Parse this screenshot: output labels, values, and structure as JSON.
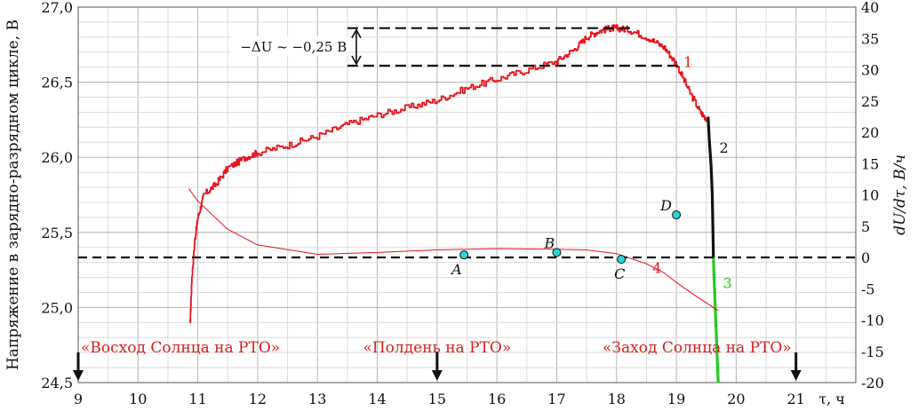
{
  "chart_data": {
    "type": "line",
    "ylabel": "Напряжение в зарядно-разрядном цикле, В",
    "y2label": "dU/dτ, В/ч",
    "xlabel": "τ, ч",
    "xlim": [
      9,
      22
    ],
    "ylim": [
      24.5,
      27.0
    ],
    "y2lim": [
      -20,
      40
    ],
    "x_ticks": [
      "9",
      "10",
      "11",
      "12",
      "13",
      "14",
      "15",
      "16",
      "17",
      "18",
      "19",
      "20",
      "21"
    ],
    "y_ticks": [
      "24,5",
      "25,0",
      "25,5",
      "26,0",
      "26,5",
      "27,0"
    ],
    "y2_ticks": [
      "-20",
      "-15",
      "-10",
      "-5",
      "0",
      "5",
      "10",
      "15",
      "20",
      "25",
      "30",
      "35",
      "40"
    ],
    "grid": true,
    "series": [
      {
        "name": "1",
        "color": "#e8141c",
        "x": [
          10.87,
          10.9,
          10.95,
          11.0,
          11.1,
          11.3,
          11.5,
          11.8,
          12.0,
          12.5,
          13.0,
          13.5,
          14.0,
          14.5,
          15.0,
          15.5,
          16.0,
          16.5,
          17.0,
          17.3,
          17.5,
          17.7,
          17.9,
          18.0,
          18.2,
          18.5,
          18.8,
          19.0,
          19.2,
          19.4,
          19.5
        ],
        "y": [
          24.88,
          25.2,
          25.45,
          25.6,
          25.75,
          25.82,
          25.93,
          26.0,
          26.03,
          26.08,
          26.14,
          26.22,
          26.28,
          26.33,
          26.38,
          26.46,
          26.52,
          26.58,
          26.64,
          26.72,
          26.8,
          26.84,
          26.86,
          26.86,
          26.85,
          26.8,
          26.73,
          26.62,
          26.45,
          26.3,
          26.26
        ]
      },
      {
        "name": "2",
        "color": "#111111",
        "x": [
          19.53,
          19.55,
          19.58,
          19.6,
          19.62
        ],
        "y": [
          26.27,
          26.12,
          25.95,
          25.75,
          25.33
        ]
      },
      {
        "name": "3",
        "color": "#22cc22",
        "x": [
          19.62,
          19.63,
          19.66,
          19.68,
          19.7
        ],
        "y": [
          25.33,
          25.2,
          24.9,
          24.7,
          24.5
        ]
      },
      {
        "name": "4",
        "axis": "right",
        "color": "#e8141c",
        "x": [
          10.85,
          11.0,
          11.5,
          12.0,
          13.0,
          14.0,
          15.0,
          16.0,
          17.0,
          17.5,
          18.0,
          18.5,
          18.8,
          19.0,
          19.3,
          19.7
        ],
        "y": [
          11.0,
          9.0,
          4.5,
          2.0,
          0.5,
          0.8,
          1.2,
          1.4,
          1.3,
          1.2,
          0.6,
          -1.0,
          -2.5,
          -4.0,
          -6.0,
          -8.5
        ]
      }
    ],
    "reference_line": {
      "y2": 0
    },
    "points": [
      {
        "label": "A",
        "x": 15.45,
        "y2": 0.4
      },
      {
        "label": "B",
        "x": 17.0,
        "y2": 0.8
      },
      {
        "label": "C",
        "x": 18.08,
        "y2": -0.3
      },
      {
        "label": "D",
        "x": 19.0,
        "y2": 6.8
      }
    ],
    "delta_u": {
      "text": "−ΔU ~ −0,25 В",
      "from": 26.86,
      "to": 26.61,
      "x_start": 13.5,
      "x_end": 19.05
    },
    "annotations": [
      {
        "text": "«Восход Солнца на РТО»",
        "x": 9
      },
      {
        "text": "«Полдень на РТО»",
        "x": 15
      },
      {
        "text": "«Заход Солнца на РТО»",
        "x": 21
      }
    ]
  }
}
